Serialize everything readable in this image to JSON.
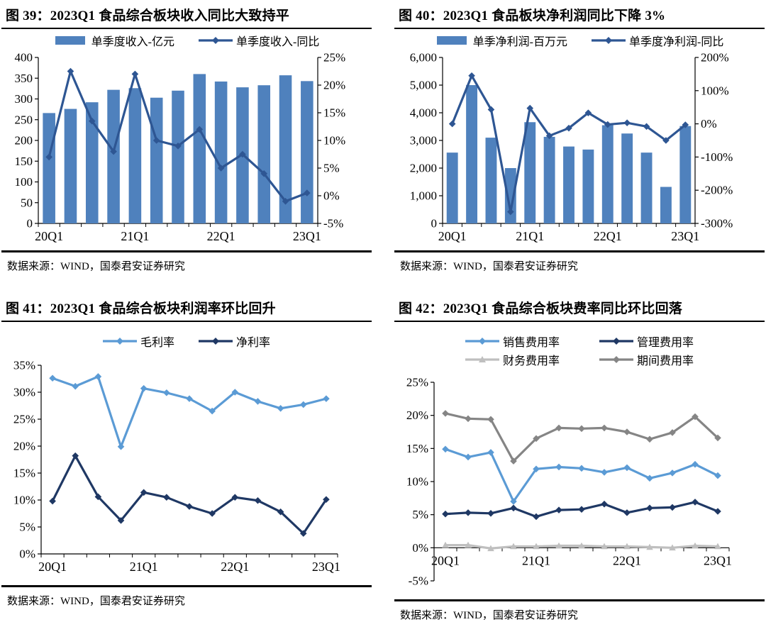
{
  "page": {
    "background": "#ffffff",
    "colors": {
      "bar_blue": "#4F81BD",
      "dark_blue_line": "#2E5693",
      "light_blue_line": "#5B9BD5",
      "navy_line": "#1F3864",
      "gray_line": "#858585",
      "light_gray_line": "#BFBFBF",
      "axis": "#000000"
    }
  },
  "chart_data": [
    {
      "type": "bar",
      "combo": "bar+line",
      "title": "图 39：2023Q1 食品综合板块收入同比大致持平",
      "source": "数据来源：WIND，国泰君安证券研究",
      "categories": [
        "20Q1",
        "20Q2",
        "20Q3",
        "20Q4",
        "21Q1",
        "21Q2",
        "21Q3",
        "21Q4",
        "22Q1",
        "22Q2",
        "22Q3",
        "22Q4",
        "23Q1"
      ],
      "x_tick_indices": [
        0,
        4,
        8,
        12
      ],
      "x_tick_labels": [
        "20Q1",
        "21Q1",
        "22Q1",
        "23Q1"
      ],
      "left_axis": {
        "min": 0,
        "max": 400,
        "tick_values": [
          0,
          50,
          100,
          150,
          200,
          250,
          300,
          350,
          400
        ],
        "tick_labels": [
          "0",
          "50",
          "100",
          "150",
          "200",
          "250",
          "300",
          "350",
          "400"
        ]
      },
      "right_axis": {
        "min": -5,
        "max": 25,
        "tick_values": [
          -5,
          0,
          5,
          10,
          15,
          20,
          25
        ],
        "tick_labels": [
          "-5%",
          "0%",
          "5%",
          "10%",
          "15%",
          "20%",
          "25%"
        ]
      },
      "legend_layout": "row",
      "series": [
        {
          "name": "单季度收入-亿元",
          "kind": "bar",
          "axis": "left",
          "color": "#4F81BD",
          "values": [
            266,
            276,
            292,
            322,
            326,
            303,
            320,
            360,
            342,
            328,
            333,
            357,
            343
          ]
        },
        {
          "name": "单季度收入-同比",
          "kind": "line",
          "marker": "diamond",
          "axis": "right",
          "color": "#2E5693",
          "values": [
            7,
            22.5,
            13.5,
            8,
            22,
            10,
            9,
            12,
            5,
            7.5,
            4,
            -1,
            0.5
          ]
        }
      ]
    },
    {
      "type": "bar",
      "combo": "bar+line",
      "title": "图 40：2023Q1 食品板块净利润同比下降 3%",
      "source": "数据来源：WIND，国泰君安证券研究",
      "categories": [
        "20Q1",
        "20Q2",
        "20Q3",
        "20Q4",
        "21Q1",
        "21Q2",
        "21Q3",
        "21Q4",
        "22Q1",
        "22Q2",
        "22Q3",
        "22Q4",
        "23Q1"
      ],
      "x_tick_indices": [
        0,
        4,
        8,
        12
      ],
      "x_tick_labels": [
        "20Q1",
        "21Q1",
        "22Q1",
        "23Q1"
      ],
      "left_axis": {
        "min": 0,
        "max": 6000,
        "tick_values": [
          0,
          1000,
          2000,
          3000,
          4000,
          5000,
          6000
        ],
        "tick_labels": [
          "0",
          "1,000",
          "2,000",
          "3,000",
          "4,000",
          "5,000",
          "6,000"
        ]
      },
      "right_axis": {
        "min": -300,
        "max": 200,
        "tick_values": [
          -300,
          -200,
          -100,
          0,
          100,
          200
        ],
        "tick_labels": [
          "-300%",
          "-200%",
          "-100%",
          "0%",
          "100%",
          "200%"
        ]
      },
      "legend_layout": "row",
      "series": [
        {
          "name": "单季净利润-百万元",
          "kind": "bar",
          "axis": "left",
          "color": "#4F81BD",
          "values": [
            2560,
            5000,
            3100,
            2000,
            3660,
            3130,
            2780,
            2670,
            3550,
            3250,
            2560,
            1320,
            3520
          ]
        },
        {
          "name": "单季度净利润-同比",
          "kind": "line",
          "marker": "diamond",
          "axis": "right",
          "color": "#2E5693",
          "values": [
            0,
            145,
            43,
            -265,
            47,
            -36,
            -13,
            33,
            -2,
            3,
            -8,
            -50,
            -3
          ]
        }
      ]
    },
    {
      "type": "line",
      "title": "图 41：2023Q1 食品综合板块利润率环比回升",
      "source": "数据来源：WIND，国泰君安证券研究",
      "categories": [
        "20Q1",
        "20Q2",
        "20Q3",
        "20Q4",
        "21Q1",
        "21Q2",
        "21Q3",
        "21Q4",
        "22Q1",
        "22Q2",
        "22Q3",
        "22Q4",
        "23Q1"
      ],
      "x_tick_indices": [
        0,
        4,
        8,
        12
      ],
      "x_tick_labels": [
        "20Q1",
        "21Q1",
        "22Q1",
        "23Q1"
      ],
      "left_axis": {
        "min": 0,
        "max": 35,
        "tick_values": [
          0,
          5,
          10,
          15,
          20,
          25,
          30,
          35
        ],
        "tick_labels": [
          "0%",
          "5%",
          "10%",
          "15%",
          "20%",
          "25%",
          "30%",
          "35%"
        ]
      },
      "right_axis": null,
      "legend_layout": "row",
      "series": [
        {
          "name": "毛利率",
          "kind": "line",
          "marker": "diamond",
          "axis": "left",
          "color": "#5B9BD5",
          "values": [
            32.6,
            31.1,
            32.9,
            19.9,
            30.7,
            29.9,
            28.8,
            26.5,
            30.0,
            28.3,
            27.0,
            27.7,
            28.8
          ]
        },
        {
          "name": "净利率",
          "kind": "line",
          "marker": "diamond",
          "axis": "left",
          "color": "#1F3864",
          "values": [
            9.8,
            18.2,
            10.6,
            6.2,
            11.4,
            10.5,
            8.8,
            7.5,
            10.5,
            9.9,
            7.8,
            3.8,
            10.1
          ]
        }
      ]
    },
    {
      "type": "line",
      "title": "图 42：2023Q1 食品综合板块费率同比环比回落",
      "source": "数据来源：WIND，国泰君安证券研究",
      "categories": [
        "20Q1",
        "20Q2",
        "20Q3",
        "20Q4",
        "21Q1",
        "21Q2",
        "21Q3",
        "21Q4",
        "22Q1",
        "22Q2",
        "22Q3",
        "22Q4",
        "23Q1"
      ],
      "x_tick_indices": [
        0,
        4,
        8,
        12
      ],
      "x_tick_labels": [
        "20Q1",
        "21Q1",
        "22Q1",
        "23Q1"
      ],
      "left_axis": {
        "min": -5,
        "max": 25,
        "tick_values": [
          -5,
          0,
          5,
          10,
          15,
          20,
          25
        ],
        "tick_labels": [
          "-5%",
          "0%",
          "5%",
          "10%",
          "15%",
          "20%",
          "25%"
        ]
      },
      "right_axis": null,
      "legend_layout": "grid-2col",
      "series": [
        {
          "name": "销售费用率",
          "kind": "line",
          "marker": "diamond",
          "axis": "left",
          "color": "#5B9BD5",
          "values": [
            14.9,
            13.7,
            14.4,
            7.0,
            11.9,
            12.2,
            12.0,
            11.4,
            12.1,
            10.5,
            11.3,
            12.6,
            10.9
          ]
        },
        {
          "name": "管理费用率",
          "kind": "line",
          "marker": "diamond",
          "axis": "left",
          "color": "#1F3864",
          "values": [
            5.1,
            5.3,
            5.2,
            6.0,
            4.7,
            5.7,
            5.8,
            6.6,
            5.3,
            6.0,
            6.1,
            6.9,
            5.5
          ]
        },
        {
          "name": "财务费用率",
          "kind": "line",
          "marker": "triangle",
          "axis": "left",
          "color": "#BFBFBF",
          "values": [
            0.4,
            0.4,
            -0.1,
            0.2,
            0.2,
            0.3,
            0.3,
            0.2,
            0.2,
            0.1,
            0.0,
            0.3,
            0.2
          ]
        },
        {
          "name": "期间费用率",
          "kind": "line",
          "marker": "diamond",
          "axis": "left",
          "color": "#858585",
          "values": [
            20.3,
            19.5,
            19.4,
            13.1,
            16.5,
            18.1,
            18.0,
            18.1,
            17.5,
            16.4,
            17.4,
            19.8,
            16.6
          ]
        }
      ]
    }
  ]
}
